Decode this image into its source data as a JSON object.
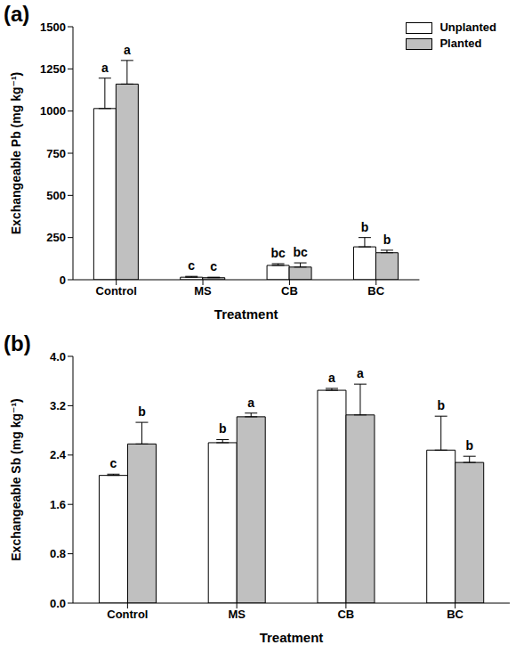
{
  "chart_data": [
    {
      "type": "bar",
      "title": "(a)",
      "x_label": "Treatment",
      "y_label": "Exchangeable Pb (mg kg⁻¹)",
      "categories": [
        "Control",
        "MS",
        "CB",
        "BC"
      ],
      "series": [
        {
          "name": "Unplanted",
          "color": "#ffffff",
          "values": [
            1015,
            15,
            85,
            195
          ],
          "errors": [
            180,
            5,
            10,
            55
          ],
          "annotations": [
            "a",
            "c",
            "bc",
            "b"
          ]
        },
        {
          "name": "Planted",
          "color": "#c0c0c0",
          "values": [
            1160,
            12,
            75,
            160
          ],
          "errors": [
            140,
            3,
            25,
            15
          ],
          "annotations": [
            "a",
            "c",
            "bc",
            "b"
          ]
        }
      ],
      "ylim": [
        0,
        1500
      ],
      "yticks": [
        0,
        250,
        500,
        750,
        1000,
        1250,
        1500
      ],
      "legend": "upper right"
    },
    {
      "type": "bar",
      "title": "(b)",
      "x_label": "Treatment",
      "y_label": "Exchangeable Sb (mg kg⁻¹)",
      "categories": [
        "Control",
        "MS",
        "CB",
        "BC"
      ],
      "series": [
        {
          "name": "Unplanted",
          "color": "#ffffff",
          "values": [
            2.07,
            2.6,
            3.45,
            2.48
          ],
          "errors": [
            0.02,
            0.05,
            0.03,
            0.55
          ],
          "annotations": [
            "c",
            "b",
            "a",
            "b"
          ]
        },
        {
          "name": "Planted",
          "color": "#c0c0c0",
          "values": [
            2.58,
            3.02,
            3.05,
            2.28
          ],
          "errors": [
            0.35,
            0.06,
            0.5,
            0.1
          ],
          "annotations": [
            "b",
            "a",
            "a",
            "b"
          ]
        }
      ],
      "ylim": [
        0,
        4.0
      ],
      "yticks": [
        {
          "value": 0,
          "label": "0.0"
        },
        0.8,
        1.6,
        2.4,
        3.2,
        {
          "value": 4,
          "label": "4.0"
        }
      ]
    }
  ]
}
